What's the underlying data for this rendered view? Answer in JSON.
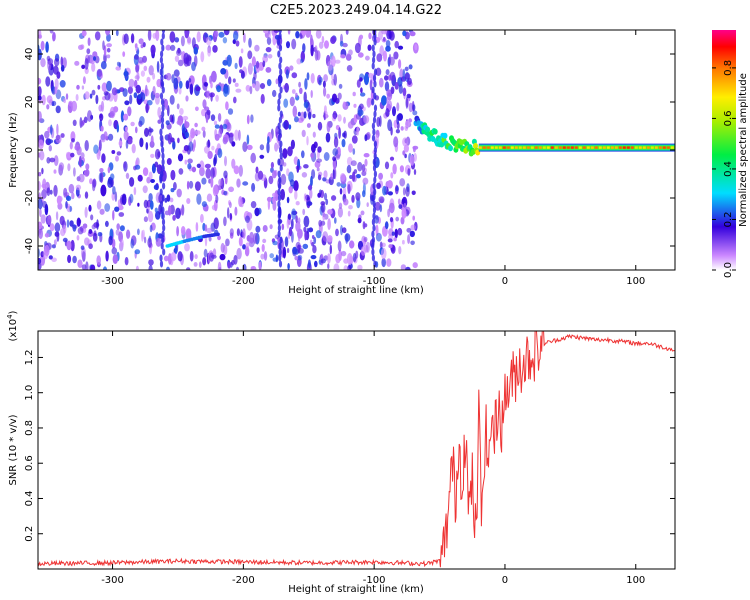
{
  "title": "C2E5.2023.249.04.14.G22",
  "chart_data": [
    {
      "type": "heatmap",
      "title": "C2E5.2023.249.04.14.G22",
      "xlabel": "Height of straight line (km)",
      "ylabel": "Frequency (Hz)",
      "xlim": [
        -357,
        130
      ],
      "ylim": [
        -50,
        50
      ],
      "xticks": [
        -300,
        -200,
        -100,
        0,
        100
      ],
      "yticks": [
        -40,
        -20,
        0,
        20,
        40
      ],
      "description_series": [
        {
          "name": "noise",
          "x_range": [
            -357,
            -68
          ],
          "y_range": [
            -50,
            50
          ],
          "amplitude_range": [
            0.0,
            0.1
          ]
        },
        {
          "name": "signal_transition",
          "x": [
            -68,
            -60,
            -50,
            -40,
            -30,
            -20
          ],
          "y": [
            12,
            8,
            4,
            3,
            1,
            1
          ],
          "amplitude": [
            0.3,
            0.45,
            0.5,
            0.5,
            0.55,
            0.65
          ]
        },
        {
          "name": "signal_stable",
          "x_range": [
            -20,
            130
          ],
          "y": 1,
          "amplitude": 0.75
        },
        {
          "name": "streak",
          "x": [
            -258,
            -245,
            -230,
            -218
          ],
          "y": [
            -40,
            -38,
            -36,
            -35
          ],
          "amplitude": [
            0.3,
            0.25,
            0.2,
            0.15
          ]
        }
      ],
      "colorbar": {
        "label": "Normalized spectral amplitude",
        "ticks": [
          0.0,
          0.2,
          0.4,
          0.6,
          0.8
        ],
        "range": [
          0,
          0.95
        ]
      }
    },
    {
      "type": "line",
      "xlabel": "Height of straight line (km)",
      "ylabel": "SNR (10 * v/v)",
      "yscale_label": "(x10",
      "yscale_exp": "4",
      "yscale_close": ")",
      "xlim": [
        -357,
        130
      ],
      "ylim": [
        0,
        1.35
      ],
      "xticks": [
        -300,
        -200,
        -100,
        0,
        100
      ],
      "yticks": [
        0.2,
        0.4,
        0.6,
        0.8,
        1.0,
        1.2
      ],
      "series": [
        {
          "name": "SNR",
          "color": "#ee3333",
          "x": [
            -357,
            -300,
            -250,
            -200,
            -150,
            -100,
            -60,
            -48,
            -45,
            -42,
            -40,
            -38,
            -35,
            -33,
            -30,
            -28,
            -25,
            -22,
            -20,
            -18,
            -15,
            -12,
            -10,
            -8,
            -5,
            -2,
            0,
            5,
            10,
            15,
            20,
            25,
            30,
            40,
            50,
            60,
            70,
            80,
            90,
            100,
            110,
            120,
            130
          ],
          "y": [
            0.03,
            0.035,
            0.045,
            0.04,
            0.035,
            0.04,
            0.03,
            0.05,
            0.2,
            0.45,
            0.6,
            0.4,
            0.7,
            0.5,
            0.8,
            0.3,
            0.5,
            0.15,
            0.9,
            0.3,
            0.8,
            0.6,
            0.9,
            0.75,
            0.95,
            0.8,
            1.0,
            1.05,
            1.15,
            1.18,
            1.22,
            1.25,
            1.28,
            1.3,
            1.32,
            1.31,
            1.3,
            1.3,
            1.29,
            1.28,
            1.28,
            1.26,
            1.24
          ]
        }
      ]
    }
  ]
}
